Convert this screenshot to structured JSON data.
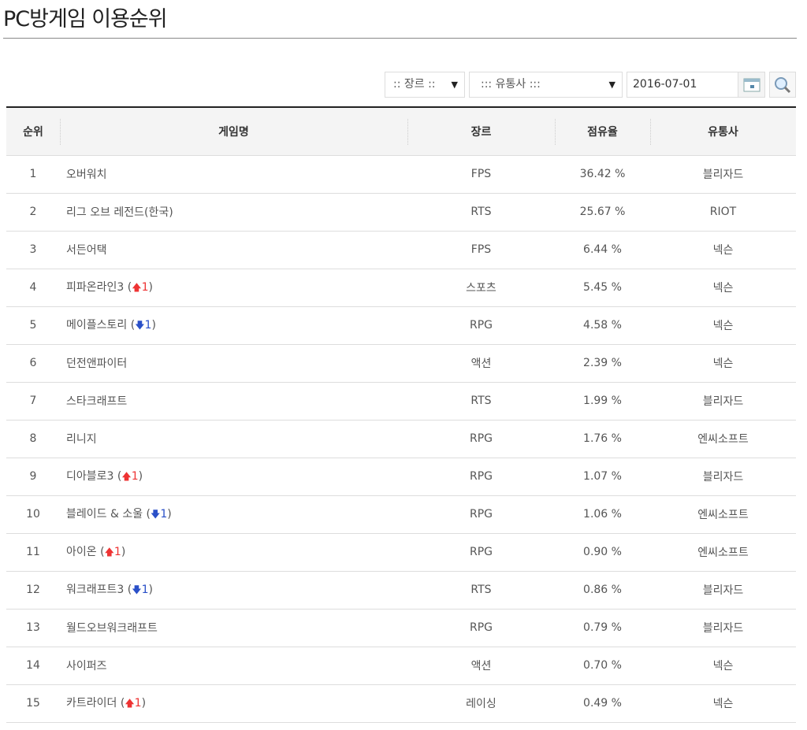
{
  "title": "PC방게임 이용순위",
  "filters": {
    "genre": ":: 장르 ::",
    "publisher": "::: 유통사 :::",
    "date": "2016-07-01"
  },
  "columns": [
    "순위",
    "게임명",
    "장르",
    "점유율",
    "유통사"
  ],
  "rows": [
    {
      "rank": "1",
      "name": "오버워치",
      "genre": "FPS",
      "share": "36.42 %",
      "publisher": "블리자드"
    },
    {
      "rank": "2",
      "name": "리그 오브 레전드(한국)",
      "genre": "RTS",
      "share": "25.67 %",
      "publisher": "RIOT"
    },
    {
      "rank": "3",
      "name": "서든어택",
      "genre": "FPS",
      "share": "6.44 %",
      "publisher": "넥슨"
    },
    {
      "rank": "4",
      "name": "피파온라인3",
      "change": "up",
      "change_value": "1",
      "genre": "스포츠",
      "share": "5.45 %",
      "publisher": "넥슨"
    },
    {
      "rank": "5",
      "name": "메이플스토리",
      "change": "down",
      "change_value": "1",
      "genre": "RPG",
      "share": "4.58 %",
      "publisher": "넥슨"
    },
    {
      "rank": "6",
      "name": "던전앤파이터",
      "genre": "액션",
      "share": "2.39 %",
      "publisher": "넥슨"
    },
    {
      "rank": "7",
      "name": "스타크래프트",
      "genre": "RTS",
      "share": "1.99 %",
      "publisher": "블리자드"
    },
    {
      "rank": "8",
      "name": "리니지",
      "genre": "RPG",
      "share": "1.76 %",
      "publisher": "엔씨소프트"
    },
    {
      "rank": "9",
      "name": "디아블로3",
      "change": "up",
      "change_value": "1",
      "genre": "RPG",
      "share": "1.07 %",
      "publisher": "블리자드"
    },
    {
      "rank": "10",
      "name": "블레이드 & 소울",
      "change": "down",
      "change_value": "1",
      "genre": "RPG",
      "share": "1.06 %",
      "publisher": "엔씨소프트"
    },
    {
      "rank": "11",
      "name": "아이온",
      "change": "up",
      "change_value": "1",
      "genre": "RPG",
      "share": "0.90 %",
      "publisher": "엔씨소프트"
    },
    {
      "rank": "12",
      "name": "워크래프트3",
      "change": "down",
      "change_value": "1",
      "genre": "RTS",
      "share": "0.86 %",
      "publisher": "블리자드"
    },
    {
      "rank": "13",
      "name": "월드오브워크래프트",
      "genre": "RPG",
      "share": "0.79 %",
      "publisher": "블리자드"
    },
    {
      "rank": "14",
      "name": "사이퍼즈",
      "genre": "액션",
      "share": "0.70 %",
      "publisher": "넥슨"
    },
    {
      "rank": "15",
      "name": "카트라이더",
      "change": "up",
      "change_value": "1",
      "genre": "레이싱",
      "share": "0.49 %",
      "publisher": "넥슨"
    }
  ]
}
